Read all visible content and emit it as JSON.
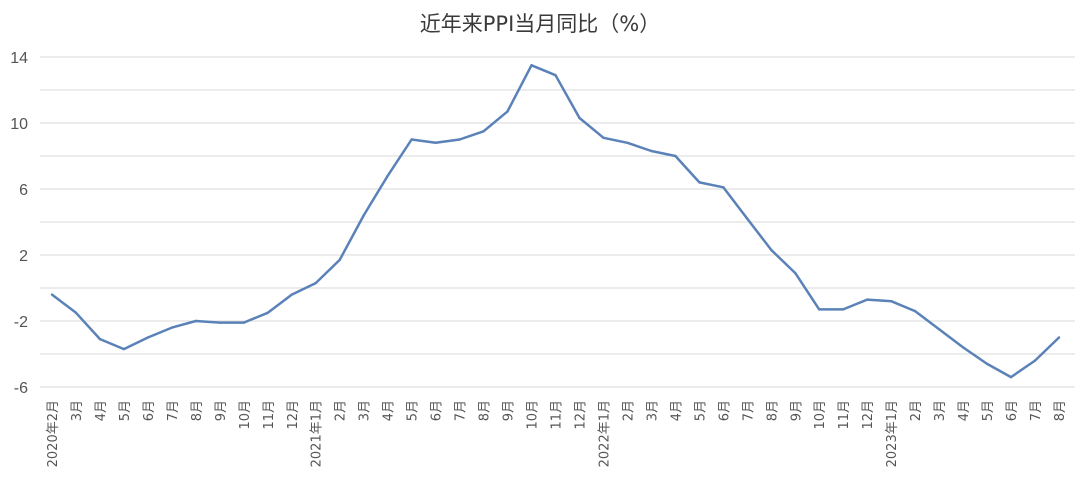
{
  "chart_data": {
    "type": "line",
    "title": "近年来PPI当月同比（%）",
    "xlabel": "",
    "ylabel": "",
    "ylim": [
      -6,
      14
    ],
    "yticks": [
      "14",
      "10",
      "6",
      "2",
      "-2",
      "-6"
    ],
    "grid": true,
    "legend": "none",
    "line_color": "#5b82b8",
    "grid_color": "#d9d9d9",
    "categories": [
      "2020年2月",
      "3月",
      "4月",
      "5月",
      "6月",
      "7月",
      "8月",
      "9月",
      "10月",
      "11月",
      "12月",
      "2021年1月",
      "2月",
      "3月",
      "4月",
      "5月",
      "6月",
      "7月",
      "8月",
      "9月",
      "10月",
      "11月",
      "12月",
      "2022年1月",
      "2月",
      "3月",
      "4月",
      "5月",
      "6月",
      "7月",
      "8月",
      "9月",
      "10月",
      "11月",
      "12月",
      "2023年1月",
      "2月",
      "3月",
      "4月",
      "5月",
      "6月",
      "7月",
      "8月"
    ],
    "series": [
      {
        "values": [
          -0.4,
          -1.5,
          -3.1,
          -3.7,
          -3.0,
          -2.4,
          -2.0,
          -2.1,
          -2.1,
          -1.5,
          -0.4,
          0.3,
          1.7,
          4.4,
          6.8,
          9.0,
          8.8,
          9.0,
          9.5,
          10.7,
          13.5,
          12.9,
          10.3,
          9.1,
          8.8,
          8.3,
          8.0,
          6.4,
          6.1,
          4.2,
          2.3,
          0.9,
          -1.3,
          -1.3,
          -0.7,
          -0.8,
          -1.4,
          -2.5,
          -3.6,
          -4.6,
          -5.4,
          -4.4,
          -3.0
        ]
      }
    ]
  }
}
